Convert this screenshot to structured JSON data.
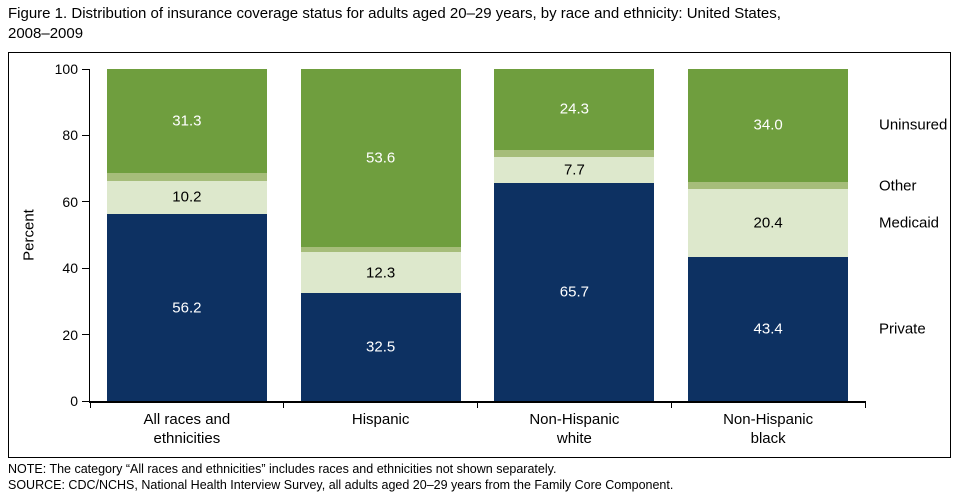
{
  "title": "Figure 1. Distribution of insurance coverage status for adults aged 20–29 years, by race and ethnicity: United States,\n2008–2009",
  "notes": {
    "note": "NOTE: The category “All races and ethnicities” includes races and ethnicities not shown separately.",
    "source": "SOURCE: CDC/NCHS, National Health Interview Survey, all adults aged 20–29 years from the Family Core Component."
  },
  "chart_data": {
    "type": "bar",
    "stacked": true,
    "ylabel": "Percent",
    "ylim": [
      0,
      100
    ],
    "yticks": [
      0,
      20,
      40,
      60,
      80,
      100
    ],
    "grid": false,
    "legend_position": "right",
    "categories": [
      "All races and ethnicities",
      "Hispanic",
      "Non-Hispanic white",
      "Non-Hispanic black"
    ],
    "categories_display": [
      "All races and\nethnicities",
      "Hispanic",
      "Non-Hispanic\nwhite",
      "Non-Hispanic\nblack"
    ],
    "series": [
      {
        "name": "Private",
        "color": "#0d3162",
        "label_color": "#ffffff",
        "values": [
          56.2,
          32.5,
          65.7,
          43.4
        ],
        "labels": [
          "56.2",
          "32.5",
          "65.7",
          "43.4"
        ]
      },
      {
        "name": "Medicaid",
        "color": "#dde8cc",
        "label_color": "#000000",
        "values": [
          10.2,
          12.3,
          7.7,
          20.4
        ],
        "labels": [
          "10.2",
          "12.3",
          "7.7",
          "20.4"
        ]
      },
      {
        "name": "Other",
        "color": "#a6bd7a",
        "label_color": "#000000",
        "values": [
          2.3,
          1.6,
          2.3,
          2.2
        ],
        "labels": [
          "",
          "",
          "",
          ""
        ]
      },
      {
        "name": "Uninsured",
        "color": "#6f9e3e",
        "label_color": "#ffffff",
        "values": [
          31.3,
          53.6,
          24.3,
          34.0
        ],
        "labels": [
          "31.3",
          "53.6",
          "24.3",
          "34.0"
        ]
      }
    ],
    "legend_labels": [
      "Uninsured",
      "Other",
      "Medicaid",
      "Private"
    ]
  }
}
